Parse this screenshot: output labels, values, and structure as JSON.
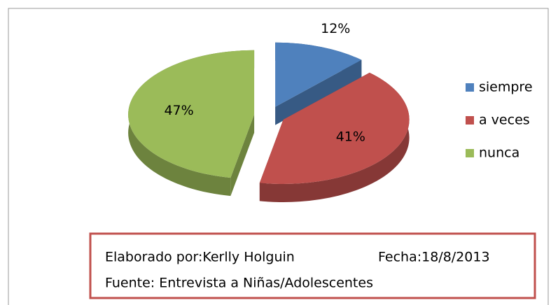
{
  "chart_data": {
    "type": "pie",
    "categories": [
      "siempre",
      "a veces",
      "nunca"
    ],
    "values": [
      12,
      41,
      47
    ],
    "value_labels": [
      "12%",
      "41%",
      "47%"
    ],
    "colors": [
      "#4f81bd",
      "#c0504d",
      "#9bbb59"
    ],
    "legend": "right",
    "annotations": [
      "Elaborado por:Kerlly Holguin",
      "Fecha:18/8/2013",
      "Fuente: Entrevista a Niñas/Adolescentes"
    ]
  }
}
